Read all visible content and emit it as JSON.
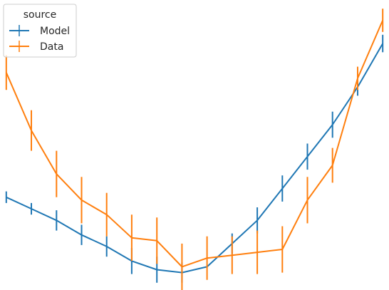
{
  "chart_data": {
    "type": "line",
    "title": "",
    "xlabel": "",
    "ylabel": "",
    "grid": false,
    "axes_visible": false,
    "legend": {
      "title": "source",
      "placement": "top-left"
    },
    "x": [
      1,
      2,
      3,
      4,
      5,
      6,
      7,
      8,
      9,
      10,
      11,
      12,
      13,
      14,
      15,
      16
    ],
    "xlim": [
      0.75,
      16.25
    ],
    "ylim": [
      0.0,
      1.0
    ],
    "series": [
      {
        "name": "Model",
        "color": "#1f77b4",
        "values": [
          0.32,
          0.28,
          0.24,
          0.19,
          0.15,
          0.1,
          0.07,
          0.06,
          0.08,
          0.16,
          0.24,
          0.35,
          0.46,
          0.57,
          0.7,
          0.85
        ],
        "error": [
          0.02,
          0.02,
          0.035,
          0.035,
          0.035,
          0.045,
          0.045,
          0.035,
          0.0,
          0.035,
          0.045,
          0.045,
          0.045,
          0.045,
          0.03,
          0.03
        ]
      },
      {
        "name": "Data",
        "color": "#ff7f0e",
        "values": [
          0.75,
          0.55,
          0.4,
          0.31,
          0.26,
          0.18,
          0.17,
          0.08,
          0.11,
          0.12,
          0.13,
          0.14,
          0.31,
          0.43,
          0.73,
          0.93
        ],
        "error": [
          0.06,
          0.07,
          0.08,
          0.08,
          0.075,
          0.08,
          0.08,
          0.08,
          0.075,
          0.065,
          0.075,
          0.08,
          0.08,
          0.06,
          0.04,
          0.04
        ]
      }
    ]
  }
}
